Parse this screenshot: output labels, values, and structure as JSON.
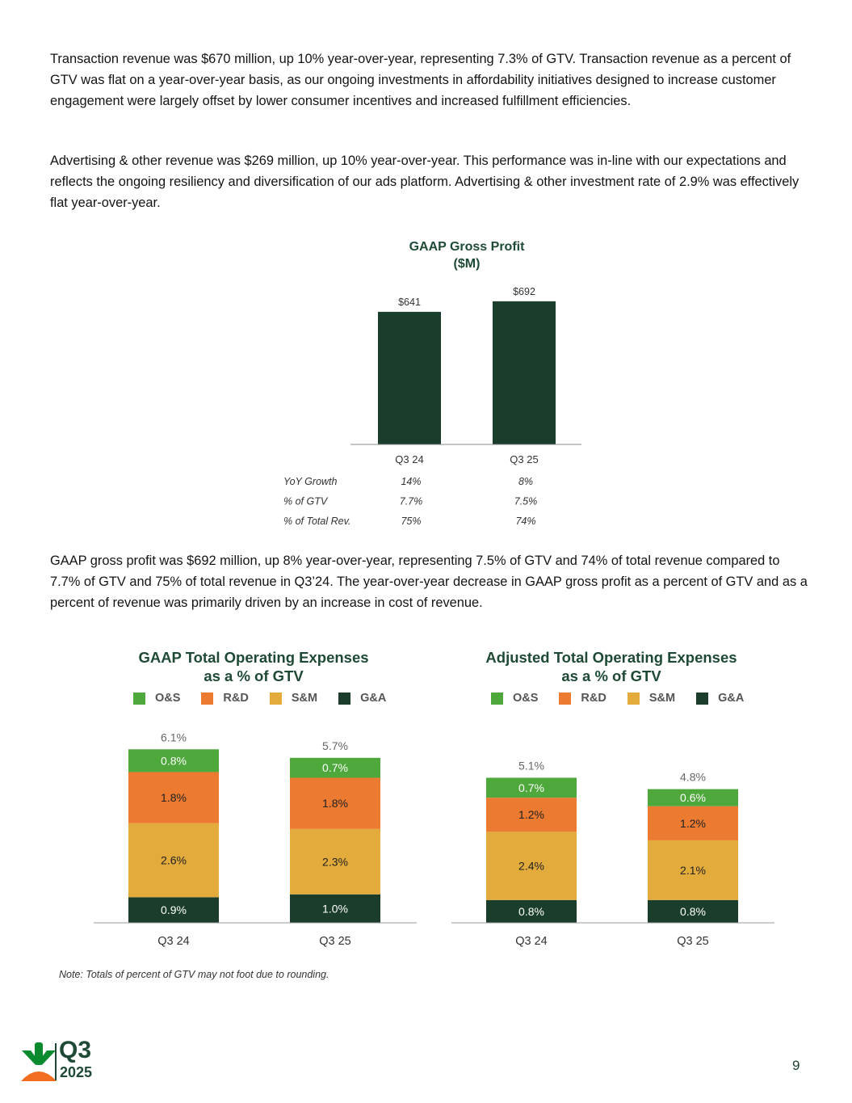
{
  "paragraphs": {
    "p1": "Transaction revenue was $670 million, up 10% year-over-year, representing 7.3% of GTV. Transaction revenue as a percent of GTV was flat on a year-over-year basis, as our ongoing investments in affordability initiatives designed to increase customer engagement were largely offset by lower consumer incentives and increased fulfillment efficiencies.",
    "p2": "Advertising & other revenue was $269 million, up 10% year-over-year. This performance was in-line with our expectations and reflects the ongoing resiliency and diversification of our ads platform. Advertising & other investment rate of 2.9% was effectively flat year-over-year.",
    "p3": "GAAP gross profit was $692 million, up 8% year-over-year, representing 7.5% of GTV and 74% of total revenue compared to 7.7% of GTV and 75% of total revenue in Q3’24. The year-over-year decrease in GAAP gross profit as a percent of GTV and as a percent of revenue was primarily driven by an increase in cost of revenue."
  },
  "colors": {
    "dark_green": "#1b3d2b",
    "os": "#4ea83c",
    "rd": "#ec7a30",
    "sm": "#e2ab3c",
    "ga": "#1b3d2b"
  },
  "chart_data": [
    {
      "type": "bar",
      "title_line1": "GAAP Gross Profit",
      "title_line2": "($M)",
      "categories": [
        "Q3 24",
        "Q3 25"
      ],
      "values": [
        641,
        692
      ],
      "value_labels": [
        "$641",
        "$692"
      ],
      "ylim": [
        0,
        750
      ],
      "stats": [
        {
          "label": "YoY Growth",
          "values": [
            "14%",
            "8%"
          ]
        },
        {
          "label": "% of GTV",
          "values": [
            "7.7%",
            "7.5%"
          ]
        },
        {
          "label": "% of Total Rev.",
          "values": [
            "75%",
            "74%"
          ]
        }
      ]
    },
    {
      "type": "bar",
      "stacked": true,
      "title_line1": "GAAP Total Operating Expenses",
      "title_line2": "as a % of GTV",
      "legend": [
        "O&S",
        "R&D",
        "S&M",
        "G&A"
      ],
      "categories": [
        "Q3 24",
        "Q3 25"
      ],
      "series": [
        {
          "name": "G&A",
          "values": [
            0.9,
            1.0
          ],
          "labels": [
            "0.9%",
            "1.0%"
          ]
        },
        {
          "name": "S&M",
          "values": [
            2.6,
            2.3
          ],
          "labels": [
            "2.6%",
            "2.3%"
          ]
        },
        {
          "name": "R&D",
          "values": [
            1.8,
            1.8
          ],
          "labels": [
            "1.8%",
            "1.8%"
          ]
        },
        {
          "name": "O&S",
          "values": [
            0.8,
            0.7
          ],
          "labels": [
            "0.8%",
            "0.7%"
          ]
        }
      ],
      "totals": [
        "6.1%",
        "5.7%"
      ],
      "ylim": [
        0,
        7.3
      ]
    },
    {
      "type": "bar",
      "stacked": true,
      "title_line1": "Adjusted Total Operating Expenses",
      "title_line2": "as a % of GTV",
      "legend": [
        "O&S",
        "R&D",
        "S&M",
        "G&A"
      ],
      "categories": [
        "Q3 24",
        "Q3 25"
      ],
      "series": [
        {
          "name": "G&A",
          "values": [
            0.8,
            0.8
          ],
          "labels": [
            "0.8%",
            "0.8%"
          ]
        },
        {
          "name": "S&M",
          "values": [
            2.4,
            2.1
          ],
          "labels": [
            "2.4%",
            "2.1%"
          ]
        },
        {
          "name": "R&D",
          "values": [
            1.2,
            1.2
          ],
          "labels": [
            "1.2%",
            "1.2%"
          ]
        },
        {
          "name": "O&S",
          "values": [
            0.7,
            0.6
          ],
          "labels": [
            "0.7%",
            "0.6%"
          ]
        }
      ],
      "totals": [
        "5.1%",
        "4.8%"
      ],
      "ylim": [
        0,
        7.3
      ]
    }
  ],
  "note": "Note: Totals of percent of GTV may not foot due to rounding.",
  "footer": {
    "quarter": "Q3",
    "year": "2025",
    "page_number": "9",
    "logo_icon": "carrot-icon"
  }
}
